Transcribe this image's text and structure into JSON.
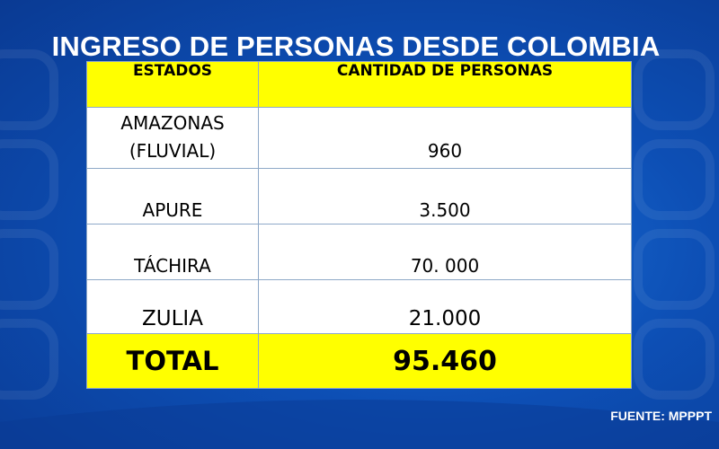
{
  "title": "INGRESO DE PERSONAS DESDE COLOMBIA",
  "table": {
    "headers": [
      "ESTADOS",
      "CANTIDAD DE PERSONAS"
    ],
    "rows": [
      {
        "state_line1": "AMAZONAS",
        "state_line2": "(FLUVIAL)",
        "value": "960"
      },
      {
        "state": "APURE",
        "value": "3.500"
      },
      {
        "state": "TÁCHIRA",
        "value": "70. 000"
      },
      {
        "state": "ZULIA",
        "value": "21.000"
      }
    ],
    "total_label": "TOTAL",
    "total_value": "95.460"
  },
  "source": "FUENTE: MPPPT",
  "colors": {
    "background": "#0d4fb5",
    "header_fill": "#ffff00",
    "total_fill": "#ffff00",
    "cell_fill": "#ffffff",
    "text_light": "#ffffff"
  }
}
